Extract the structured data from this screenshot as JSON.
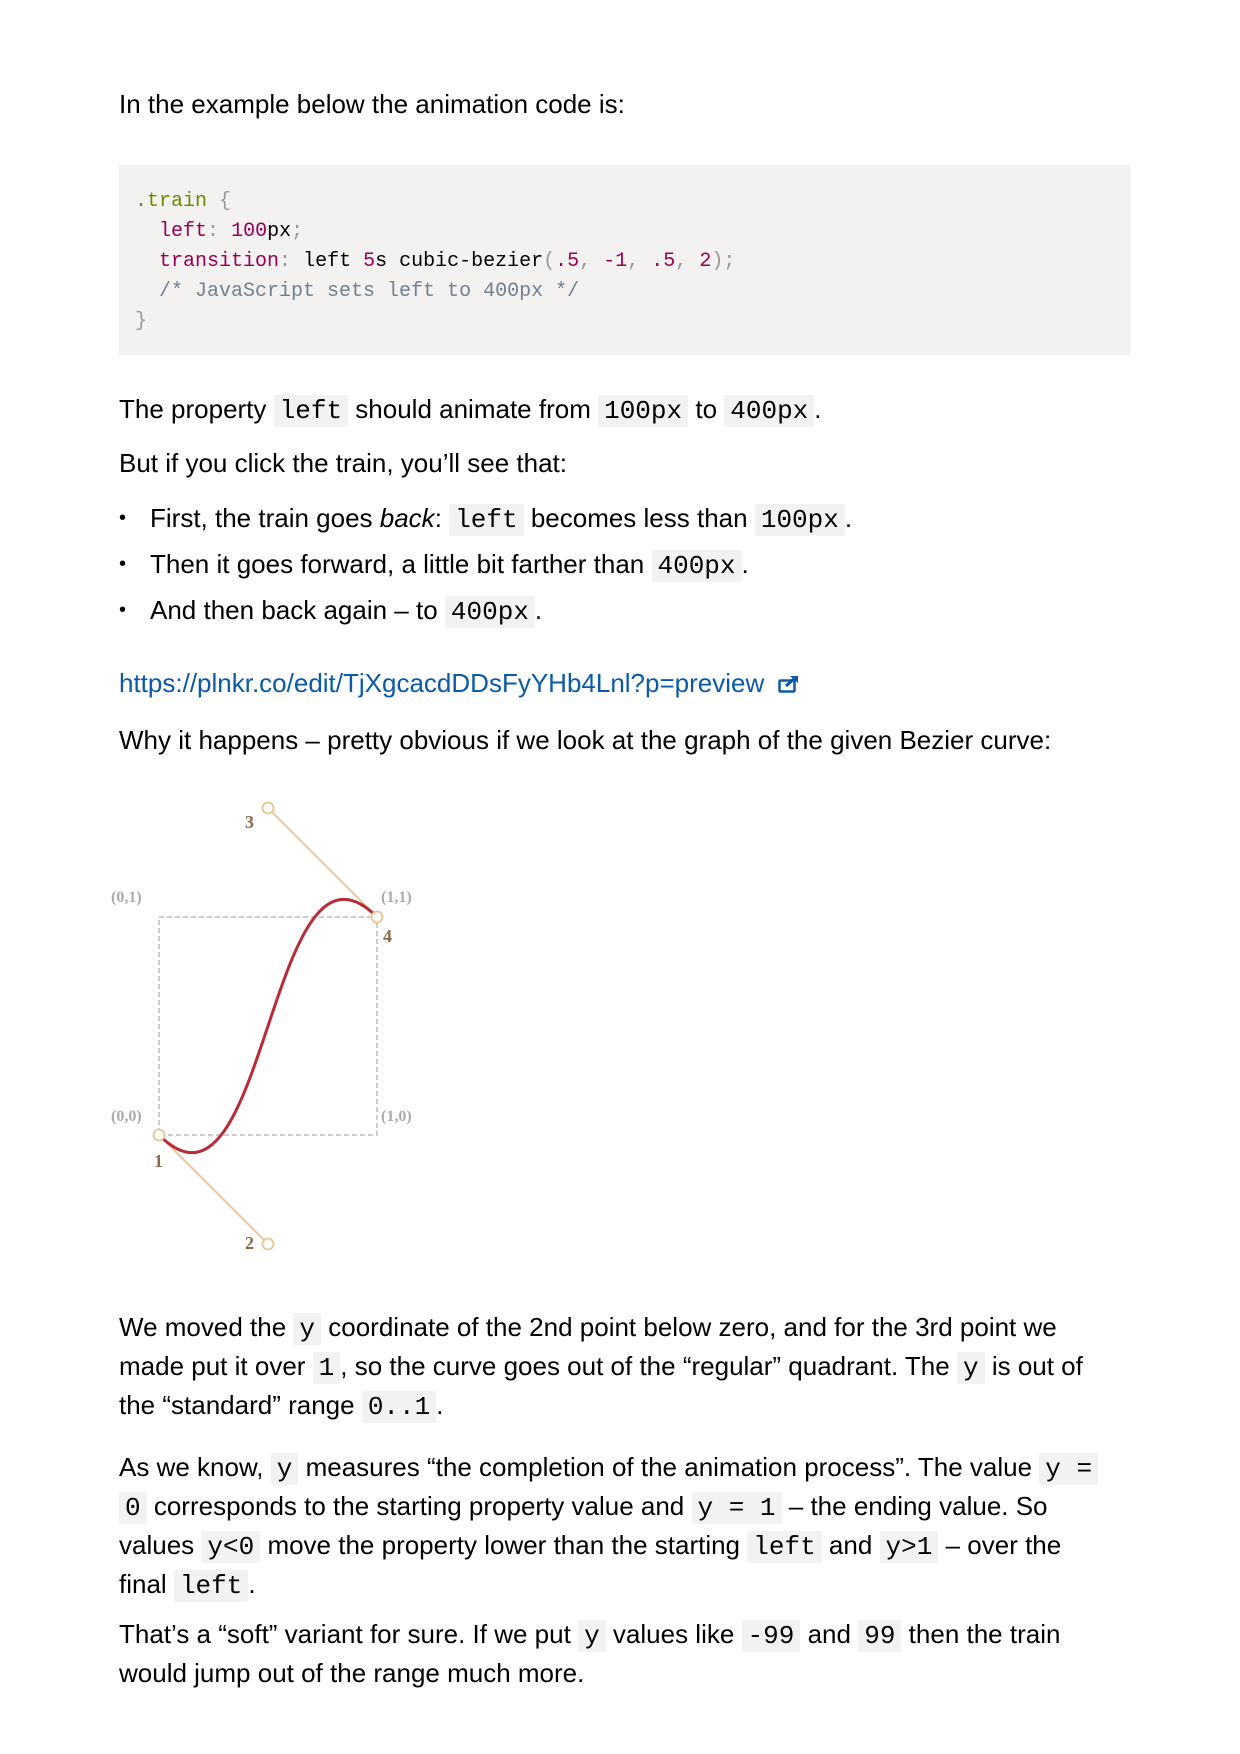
{
  "intro": "In the example below the animation code is:",
  "code": {
    "selector": ".train",
    "open_brace": "{",
    "line1_prop": "left",
    "line1_colon": ":",
    "line1_num": "100",
    "line1_unit": "px",
    "line1_semi": ";",
    "line2_prop": "transition",
    "line2_colon": ":",
    "line2_text1": "left",
    "line2_num": "5",
    "line2_text2": "s cubic-bezier",
    "line2_p1": "(",
    "line2_a": ".5",
    "line2_c1": ",",
    "line2_b": "-1",
    "line2_c2": ",",
    "line2_c": ".5",
    "line2_c3": ",",
    "line2_d": "2",
    "line2_end": ");",
    "comment": "/* JavaScript sets left to 400px */",
    "close_brace": "}"
  },
  "p1": {
    "a": "The property",
    "code1": "left",
    "b": "should animate from",
    "code2": "100px",
    "c": "to",
    "code3": "400px",
    "d": "."
  },
  "p2": "But if you click the train, you’ll see that:",
  "bullets": [
    {
      "a": "First, the train goes ",
      "em": "back",
      "b": ":",
      "code1": "left",
      "c": "becomes less than",
      "code2": "100px",
      "d": "."
    },
    {
      "a": "Then it goes forward, a little bit farther than",
      "code1": "400px",
      "d": "."
    },
    {
      "a": "And then back again – to",
      "code1": "400px",
      "d": "."
    }
  ],
  "link": "https://plnkr.co/edit/TjXgcacdDDsFyYHb4Lnl?p=preview",
  "p3": "Why it happens – pretty obvious if we look at the graph of the given Bezier curve:",
  "diagram": {
    "labels": {
      "tl": "(0,1)",
      "tr": "(1,1)",
      "bl": "(0,0)",
      "br": "(1,0)"
    },
    "points": [
      "1",
      "2",
      "3",
      "4"
    ],
    "curve_color": "#b82b37",
    "handle_color": "#e9c48e",
    "label_color": "#8a6a4a"
  },
  "p4": {
    "a": "We moved the",
    "code1": "y",
    "b": "coordinate of the 2nd point below zero, and for the 3rd point we",
    "c": "made put it over",
    "code2": "1",
    "d": ", so the curve goes out of the “regular” quadrant. The",
    "code3": "y",
    "e": "is out of",
    "f": "the “standard” range",
    "code4": "0..1",
    "g": "."
  },
  "p5": {
    "a": "As we know,",
    "code1": "y",
    "b": "measures “the completion of the animation process”. The value",
    "code2a": "y =",
    "code2b": "0",
    "c": "corresponds to the starting property value and",
    "code3": "y = 1",
    "d": "– the ending value. So",
    "e": "values",
    "code4": "y<0",
    "f": "move the property lower than the starting",
    "code5": "left",
    "g": "and",
    "code6": "y>1",
    "h": "– over the",
    "i": "final",
    "code7": "left",
    "j": "."
  },
  "p6": {
    "a": "That’s a “soft” variant for sure. If we put",
    "code1": "y",
    "b": "values like",
    "code2": "-99",
    "c": "and",
    "code3": "99",
    "d": "then the train",
    "e": "would jump out of the range much more."
  }
}
